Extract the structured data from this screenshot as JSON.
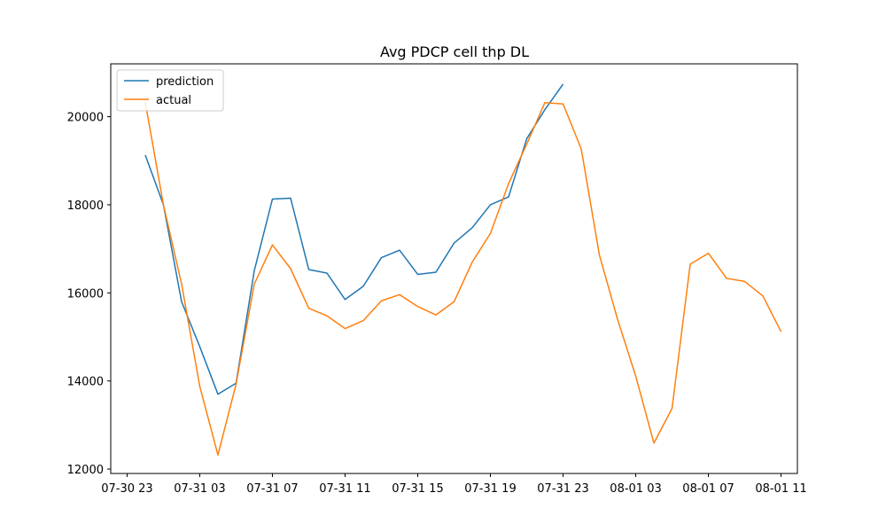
{
  "chart_data": {
    "type": "line",
    "title": "Avg PDCP cell thp DL",
    "xlabel": "",
    "ylabel": "",
    "x_tick_labels": [
      "07-30 23",
      "07-31 03",
      "07-31 07",
      "07-31 11",
      "07-31 15",
      "07-31 19",
      "07-31 23",
      "08-01 03",
      "08-01 07",
      "08-01 11"
    ],
    "y_ticks": [
      12000,
      14000,
      16000,
      18000,
      20000
    ],
    "ylim": [
      11900,
      21200
    ],
    "legend_position": "upper-left",
    "grid": false,
    "x": [
      "07-31 00",
      "07-31 01",
      "07-31 02",
      "07-31 03",
      "07-31 04",
      "07-31 05",
      "07-31 06",
      "07-31 07",
      "07-31 08",
      "07-31 09",
      "07-31 10",
      "07-31 11",
      "07-31 12",
      "07-31 13",
      "07-31 14",
      "07-31 15",
      "07-31 16",
      "07-31 17",
      "07-31 18",
      "07-31 19",
      "07-31 20",
      "07-31 21",
      "07-31 22",
      "07-31 23",
      "08-01 00",
      "08-01 01",
      "08-01 02",
      "08-01 03",
      "08-01 04",
      "08-01 05",
      "08-01 06",
      "08-01 07",
      "08-01 08",
      "08-01 09",
      "08-01 10",
      "08-01 11"
    ],
    "xlim": [
      "07-30 22:06",
      "08-01 11:54"
    ],
    "series": [
      {
        "name": "prediction",
        "color": "#1f77b4",
        "values": [
          19130,
          18000,
          15800,
          14780,
          13700,
          13950,
          16500,
          18130,
          18150,
          16530,
          16450,
          15850,
          16150,
          16800,
          16970,
          16420,
          16470,
          17130,
          17480,
          18000,
          18180,
          19500,
          20160,
          20740,
          null,
          null,
          null,
          null,
          null,
          null,
          null,
          null,
          null,
          null,
          null,
          null
        ]
      },
      {
        "name": "actual",
        "color": "#ff7f0e",
        "values": [
          20330,
          18000,
          16200,
          13880,
          12320,
          13930,
          16200,
          17090,
          16550,
          15650,
          15480,
          15190,
          15370,
          15820,
          15960,
          15690,
          15500,
          15800,
          16700,
          17350,
          18480,
          19380,
          20320,
          20290,
          19270,
          16860,
          15400,
          14110,
          12590,
          13380,
          16650,
          16900,
          16330,
          16260,
          15930,
          15120
        ]
      }
    ]
  }
}
